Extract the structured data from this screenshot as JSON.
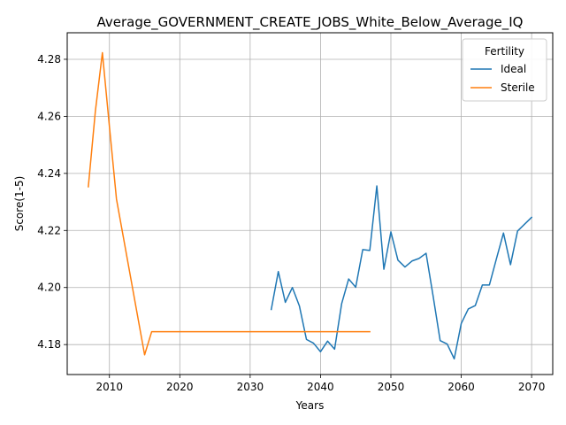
{
  "chart_data": {
    "type": "line",
    "title": "Average_GOVERNMENT_CREATE_JOBS_White_Below_Average_IQ",
    "xlabel": "Years",
    "ylabel": "Score(1-5)",
    "xlim": [
      2004,
      2073
    ],
    "ylim": [
      4.1695,
      4.2893
    ],
    "x_ticks": [
      2010,
      2020,
      2030,
      2040,
      2050,
      2060,
      2070
    ],
    "y_ticks": [
      4.18,
      4.2,
      4.22,
      4.24,
      4.26,
      4.28
    ],
    "x_tick_labels": [
      "2010",
      "2020",
      "2030",
      "2040",
      "2050",
      "2060",
      "2070"
    ],
    "y_tick_labels": [
      "4.18",
      "4.20",
      "4.22",
      "4.24",
      "4.26",
      "4.28"
    ],
    "grid": true,
    "legend": {
      "title": "Fertility",
      "position": "top-right"
    },
    "series": [
      {
        "name": "Ideal",
        "color": "#1f77b4",
        "points": [
          [
            2033,
            4.1923
          ],
          [
            2034,
            4.2056
          ],
          [
            2035,
            4.1948
          ],
          [
            2036,
            4.2
          ],
          [
            2037,
            4.1935
          ],
          [
            2038,
            4.1818
          ],
          [
            2039,
            4.1805
          ],
          [
            2040,
            4.1775
          ],
          [
            2041,
            4.1812
          ],
          [
            2042,
            4.1784
          ],
          [
            2043,
            4.1943
          ],
          [
            2044,
            4.203
          ],
          [
            2045,
            4.2001
          ],
          [
            2046,
            4.2133
          ],
          [
            2047,
            4.213
          ],
          [
            2048,
            4.2356
          ],
          [
            2049,
            4.2064
          ],
          [
            2050,
            4.2195
          ],
          [
            2051,
            4.2096
          ],
          [
            2052,
            4.2072
          ],
          [
            2053,
            4.2093
          ],
          [
            2054,
            4.2102
          ],
          [
            2055,
            4.212
          ],
          [
            2056,
            4.197
          ],
          [
            2057,
            4.1814
          ],
          [
            2058,
            4.1802
          ],
          [
            2059,
            4.175
          ],
          [
            2060,
            4.1874
          ],
          [
            2061,
            4.1925
          ],
          [
            2062,
            4.1937
          ],
          [
            2063,
            4.2009
          ],
          [
            2064,
            4.2009
          ],
          [
            2065,
            4.2101
          ],
          [
            2066,
            4.2191
          ],
          [
            2067,
            4.208
          ],
          [
            2068,
            4.2198
          ],
          [
            2069,
            4.2222
          ],
          [
            2070,
            4.2246
          ]
        ]
      },
      {
        "name": "Sterile",
        "color": "#ff7f0e",
        "points": [
          [
            2007,
            4.2353
          ],
          [
            2008,
            4.2618
          ],
          [
            2009,
            4.2823
          ],
          [
            2010,
            4.2564
          ],
          [
            2011,
            4.231
          ],
          [
            2015,
            4.1764
          ],
          [
            2016,
            4.1845
          ],
          [
            2020,
            4.1845
          ],
          [
            2030,
            4.1845
          ],
          [
            2040,
            4.1845
          ],
          [
            2047,
            4.1845
          ]
        ]
      }
    ]
  }
}
